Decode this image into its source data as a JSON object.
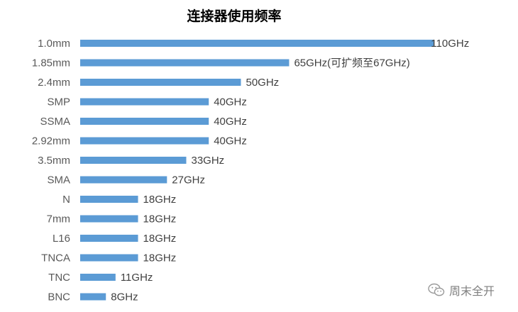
{
  "chart_data": {
    "type": "bar",
    "orientation": "horizontal",
    "title": "连接器使用频率",
    "xlabel": "",
    "ylabel": "",
    "xlim": [
      0,
      110
    ],
    "grid": false,
    "legend": "none",
    "bar_color": "#5b9bd5",
    "categories": [
      "1.0mm",
      "1.85mm",
      "2.4mm",
      "SMP",
      "SSMA",
      "2.92mm",
      "3.5mm",
      "SMA",
      "N",
      "7mm",
      "L16",
      "TNCA",
      "TNC",
      "BNC"
    ],
    "series": [
      {
        "values": [
          110,
          65,
          50,
          40,
          40,
          40,
          33,
          27,
          18,
          18,
          18,
          18,
          11,
          8
        ]
      }
    ],
    "data_labels": [
      "110GHz",
      "65GHz(可扩频至67GHz)",
      "50GHz",
      "40GHz",
      "40GHz",
      "40GHz",
      "33GHz",
      "27GHz",
      "18GHz",
      "18GHz",
      "18GHz",
      "18GHz",
      "11GHz",
      "8GHz"
    ]
  },
  "watermark": {
    "text": "周末全开",
    "icon": "wechat-icon"
  }
}
